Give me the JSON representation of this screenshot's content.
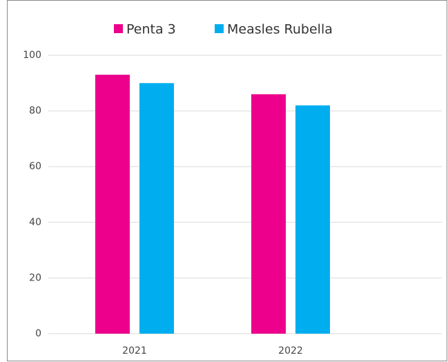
{
  "chart_data": {
    "type": "bar",
    "categories": [
      "2021",
      "2022"
    ],
    "series": [
      {
        "name": "Penta 3",
        "color": "#ec008c",
        "values": [
          93,
          86
        ]
      },
      {
        "name": "Measles Rubella",
        "color": "#00aeef",
        "values": [
          90,
          82
        ]
      }
    ],
    "ylim": [
      0,
      100
    ],
    "yticks": [
      0,
      20,
      40,
      60,
      80,
      100
    ],
    "grid": true,
    "legend": "top"
  }
}
